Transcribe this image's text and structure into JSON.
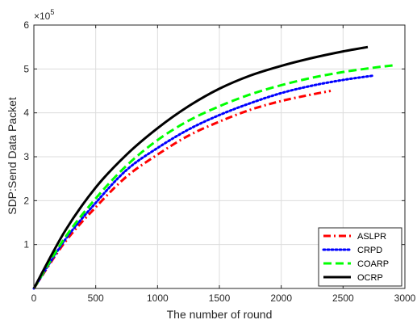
{
  "chart_data": {
    "type": "line",
    "xlabel": "The number of round",
    "ylabel": "SDP:Send Data Packet",
    "y_multiplier_base": "×10",
    "y_multiplier_exp": "5",
    "xlim": [
      0,
      3000
    ],
    "ylim": [
      0,
      6
    ],
    "xticks": [
      "0",
      "500",
      "1000",
      "1500",
      "2000",
      "2500",
      "3000"
    ],
    "yticks": [
      "1",
      "2",
      "3",
      "4",
      "5",
      "6"
    ],
    "grid": true,
    "legend_position": "bottom-right",
    "series": [
      {
        "name": "ASLPR",
        "color": "#ff0000",
        "dash": "dashdot",
        "x": [
          0,
          250,
          500,
          750,
          1000,
          1250,
          1500,
          1750,
          2000,
          2250,
          2400
        ],
        "y": [
          0,
          1.05,
          1.85,
          2.55,
          3.05,
          3.48,
          3.8,
          4.07,
          4.27,
          4.42,
          4.5
        ]
      },
      {
        "name": "CRPD",
        "color": "#0000ff",
        "dash": "dotted",
        "x": [
          0,
          250,
          500,
          750,
          1000,
          1250,
          1500,
          1750,
          2000,
          2250,
          2500,
          2750
        ],
        "y": [
          0,
          1.1,
          1.95,
          2.7,
          3.2,
          3.62,
          3.95,
          4.22,
          4.45,
          4.62,
          4.75,
          4.85
        ]
      },
      {
        "name": "COARP",
        "color": "#00ff00",
        "dash": "dashed",
        "x": [
          0,
          250,
          500,
          750,
          1000,
          1250,
          1500,
          1750,
          2000,
          2250,
          2500,
          2750,
          2900
        ],
        "y": [
          0,
          1.15,
          2.05,
          2.8,
          3.38,
          3.82,
          4.15,
          4.42,
          4.63,
          4.8,
          4.93,
          5.03,
          5.08
        ]
      },
      {
        "name": "OCRP",
        "color": "#000000",
        "dash": "solid",
        "x": [
          0,
          250,
          500,
          750,
          1000,
          1250,
          1500,
          1750,
          2000,
          2250,
          2500,
          2700
        ],
        "y": [
          0,
          1.3,
          2.3,
          3.05,
          3.65,
          4.15,
          4.55,
          4.85,
          5.07,
          5.25,
          5.4,
          5.5
        ]
      }
    ]
  }
}
